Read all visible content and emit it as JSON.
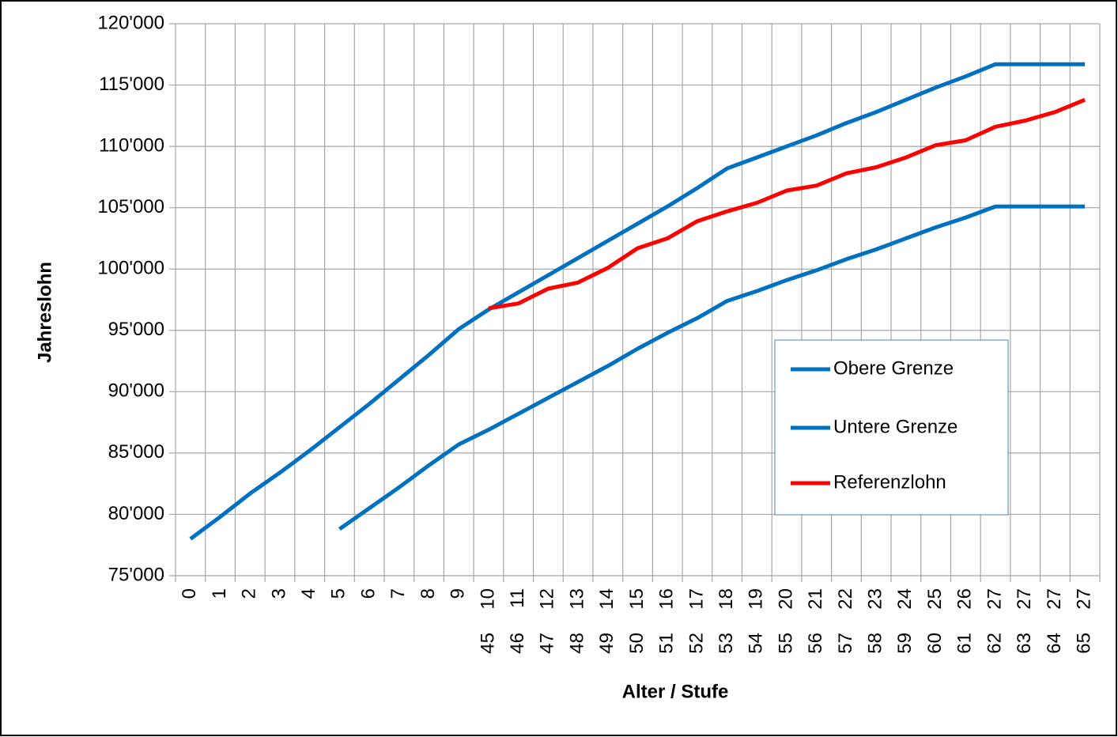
{
  "chart_data": {
    "type": "line",
    "x_title": "Alter / Stufe",
    "y_title": "Jahreslohn",
    "categories": [
      "0",
      "1",
      "2",
      "3",
      "4",
      "5",
      "6",
      "7",
      "8",
      "9",
      "10",
      "11",
      "12",
      "13",
      "14",
      "15",
      "16",
      "17",
      "18",
      "19",
      "20",
      "21",
      "22",
      "23",
      "24",
      "25",
      "26",
      "27",
      "27",
      "27",
      "27"
    ],
    "age_labels": [
      null,
      null,
      null,
      null,
      null,
      null,
      null,
      null,
      null,
      null,
      "45",
      "46",
      "47",
      "48",
      "49",
      "50",
      "51",
      "52",
      "53",
      "54",
      "55",
      "56",
      "57",
      "58",
      "59",
      "60",
      "61",
      "62",
      "63",
      "64",
      "65"
    ],
    "ylim": [
      75000,
      120000
    ],
    "yticks": [
      {
        "value": 75000,
        "label": "75'000"
      },
      {
        "value": 80000,
        "label": "80'000"
      },
      {
        "value": 85000,
        "label": "85'000"
      },
      {
        "value": 90000,
        "label": "90'000"
      },
      {
        "value": 95000,
        "label": "95'000"
      },
      {
        "value": 100000,
        "label": "100'000"
      },
      {
        "value": 105000,
        "label": "105'000"
      },
      {
        "value": 110000,
        "label": "110'000"
      },
      {
        "value": 115000,
        "label": "115'000"
      },
      {
        "value": 120000,
        "label": "120'000"
      }
    ],
    "grid": true,
    "series": [
      {
        "name": "Obere Grenze",
        "color": "#0070c0",
        "values": [
          78000,
          79800,
          81700,
          83400,
          85200,
          87100,
          89000,
          91000,
          93000,
          95100,
          96700,
          98100,
          99500,
          100900,
          102300,
          103700,
          105100,
          106600,
          108200,
          109100,
          110000,
          110900,
          111900,
          112800,
          113800,
          114800,
          115700,
          116700,
          116700,
          116700,
          116700
        ]
      },
      {
        "name": "Untere Grenze",
        "color": "#0070c0",
        "values": [
          null,
          null,
          null,
          null,
          null,
          78800,
          80500,
          82200,
          84000,
          85700,
          86900,
          88200,
          89500,
          90800,
          92100,
          93500,
          94800,
          96000,
          97400,
          98200,
          99100,
          99900,
          100800,
          101600,
          102500,
          103400,
          104200,
          105100,
          105100,
          105100,
          105100
        ]
      },
      {
        "name": "Referenzlohn",
        "color": "#ff0000",
        "values": [
          null,
          null,
          null,
          null,
          null,
          null,
          null,
          null,
          null,
          null,
          96800,
          97200,
          98400,
          98900,
          100100,
          101700,
          102500,
          103900,
          104700,
          105400,
          106400,
          106800,
          107800,
          108300,
          109100,
          110100,
          110500,
          111600,
          112100,
          112800,
          113800
        ]
      }
    ]
  }
}
